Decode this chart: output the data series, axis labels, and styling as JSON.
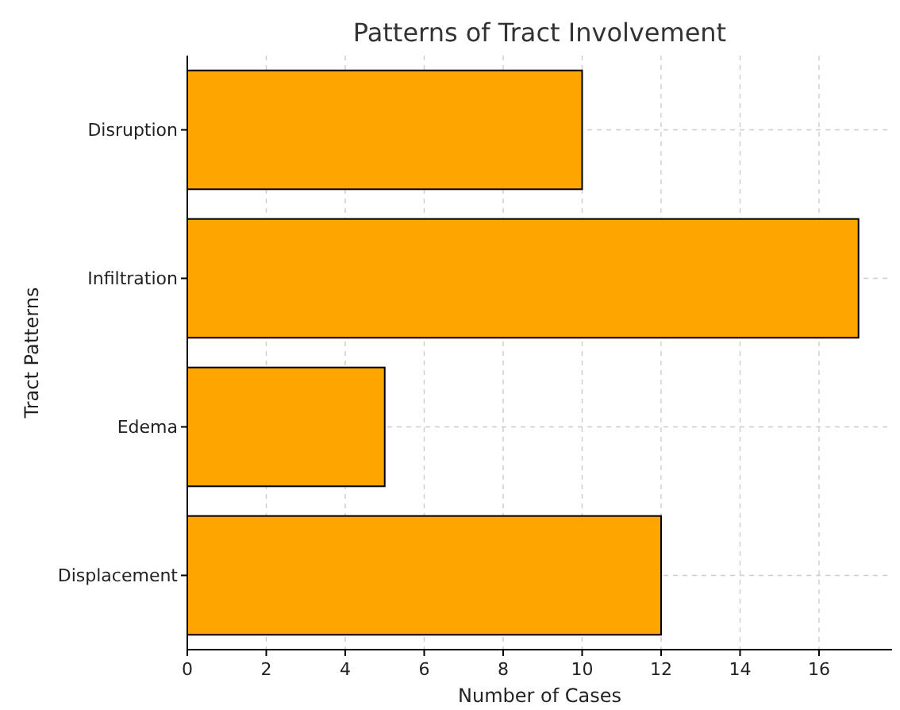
{
  "chart_data": {
    "type": "bar",
    "orientation": "horizontal",
    "title": "Patterns of Tract Involvement",
    "xlabel": "Number of Cases",
    "ylabel": "Tract Patterns",
    "categories": [
      "Disruption",
      "Infiltration",
      "Edema",
      "Displacement"
    ],
    "values": [
      10,
      17,
      5,
      12
    ],
    "color": "#ffa500",
    "xlim": [
      0,
      17.85
    ],
    "xticks": [
      0,
      2,
      4,
      6,
      8,
      10,
      12,
      14,
      16
    ],
    "grid": true
  }
}
